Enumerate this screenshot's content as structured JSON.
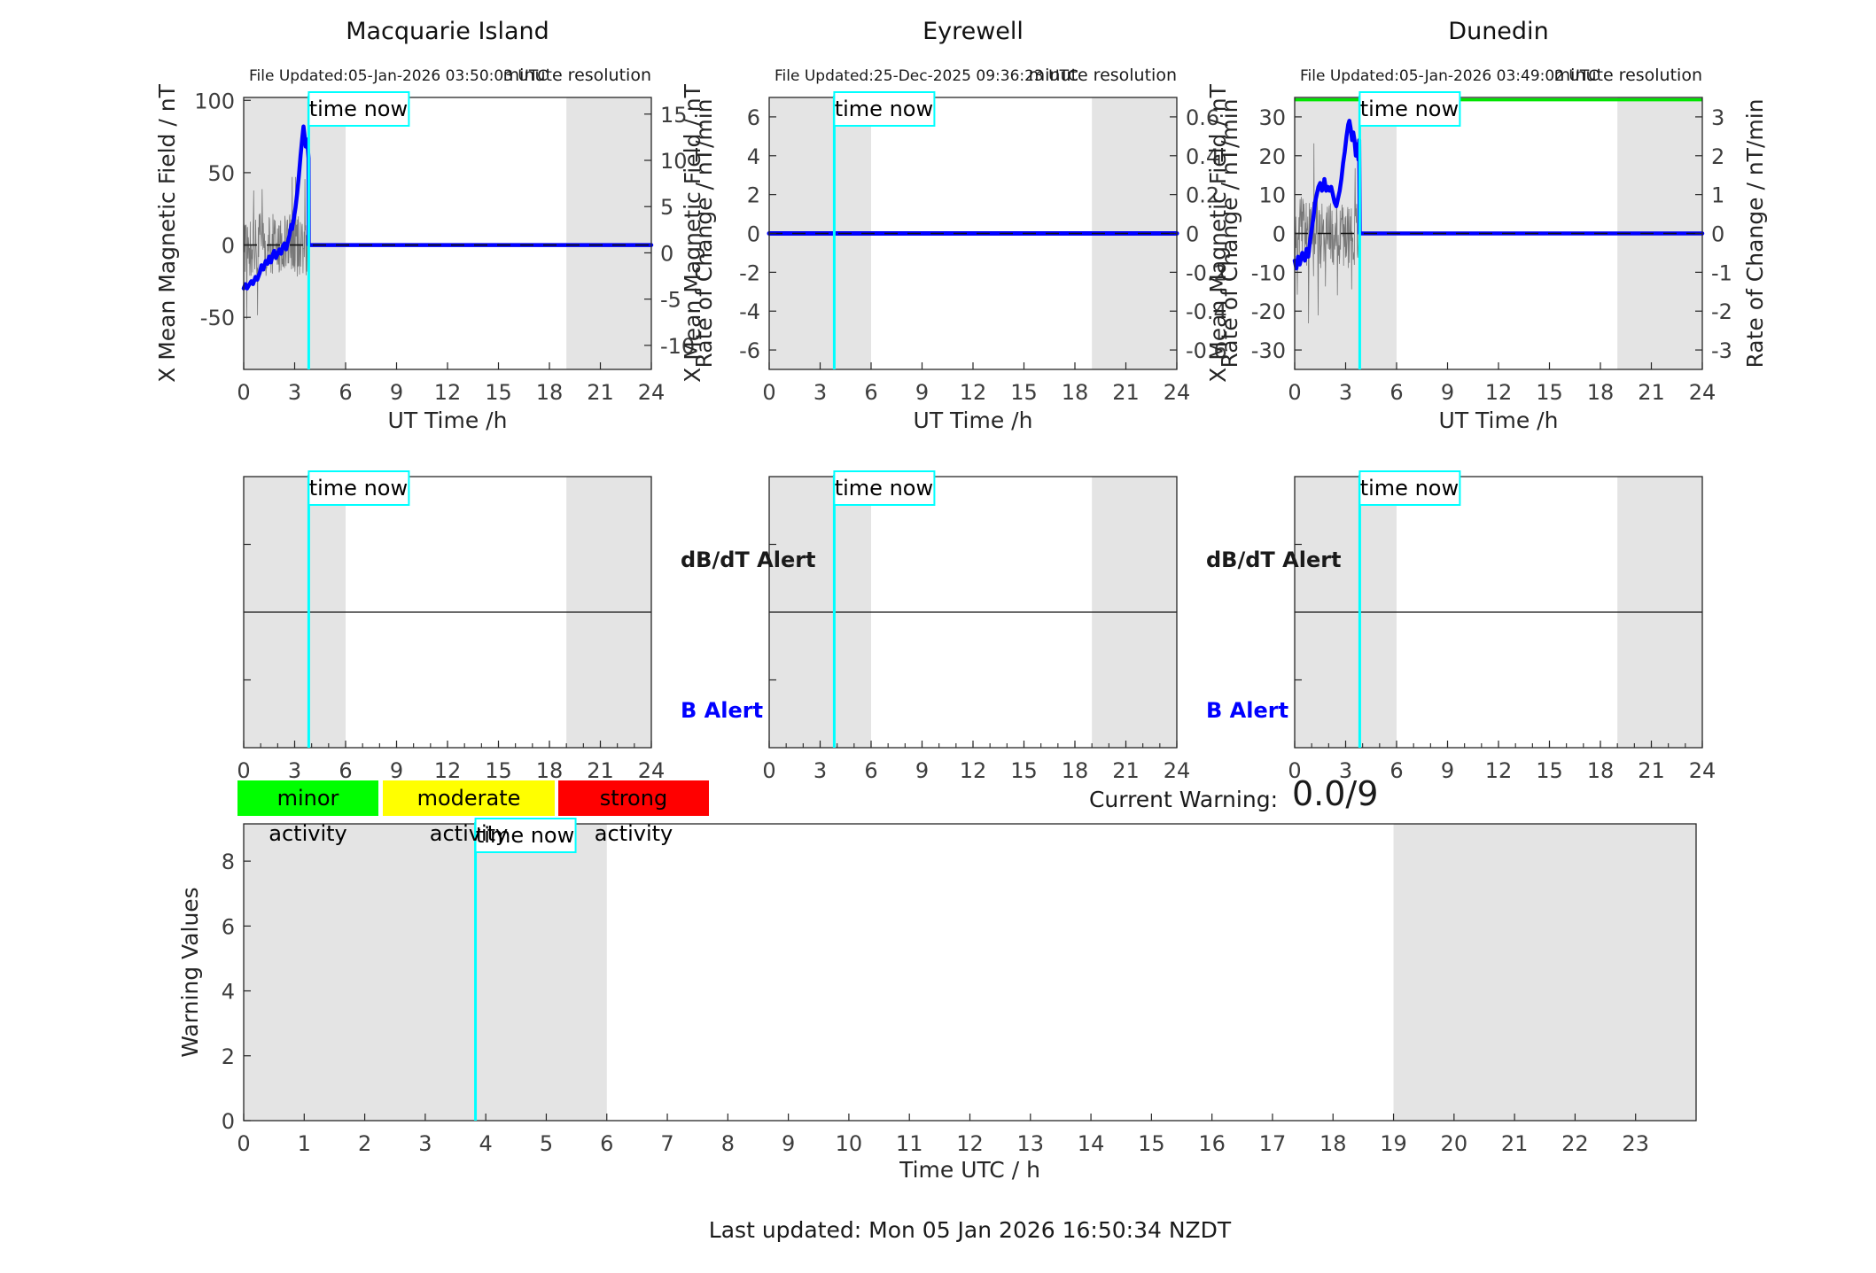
{
  "time_now_label": "time now",
  "stations": [
    {
      "name": "Macquarie Island",
      "file_updated": "File Updated:05-Jan-2026 03:50:03 UTC",
      "resolution_note": "minute resolution"
    },
    {
      "name": "Eyrewell",
      "file_updated": "File Updated:25-Dec-2025 09:36:23 UTC",
      "resolution_note": "minute resolution"
    },
    {
      "name": "Dunedin",
      "file_updated": "File Updated:05-Jan-2026 03:49:02 UTC",
      "resolution_note": "minute resolution"
    }
  ],
  "alert_labels": {
    "db_dt": "dB/dT Alert",
    "b": "B Alert"
  },
  "legend": {
    "items": [
      {
        "label": "minor activity",
        "color": "#00ff00"
      },
      {
        "label": "moderate activity",
        "color": "#ffff00"
      },
      {
        "label": "strong activity",
        "color": "#ff0000"
      }
    ]
  },
  "current_warning": {
    "label": "Current Warning:",
    "value": "0.0/9"
  },
  "footer": "Last updated: Mon 05 Jan 2026 16:50:34 NZDT",
  "colors": {
    "series": "#0000ff",
    "time_now": "#00ffff",
    "band": "#e4e4e4",
    "noise": "#787878",
    "green_line": "#00e400",
    "axis": "#262626",
    "left_axis_text": "#0000ff"
  },
  "chart_data": [
    {
      "id": "macquarie-field",
      "type": "line",
      "station": "Macquarie Island",
      "xlabel": "UT Time /h",
      "xlim": [
        0,
        24
      ],
      "xticks": [
        0,
        3,
        6,
        9,
        12,
        15,
        18,
        21,
        24
      ],
      "left_axis": {
        "label": "X Mean Magnetic Field / nT",
        "ticks": [
          100,
          50,
          0,
          -50
        ],
        "lim": [
          -86,
          102
        ],
        "color": "#0000ff"
      },
      "right_axis": {
        "label": "Rate of Change / nT/min",
        "ticks": [
          15,
          10,
          5,
          0,
          -5,
          -10
        ],
        "lim": [
          -12.6,
          16.8
        ]
      },
      "bands": [
        [
          0,
          6
        ],
        [
          19,
          24
        ]
      ],
      "time_now": 3.83,
      "zero_dashed": true,
      "series": [
        {
          "name": "x-mean-field",
          "color": "#0000ff",
          "width": 4.5,
          "points": [
            [
              0,
              -30
            ],
            [
              0.1,
              -27
            ],
            [
              0.2,
              -30
            ],
            [
              0.3,
              -28
            ],
            [
              0.45,
              -25
            ],
            [
              0.55,
              -27
            ],
            [
              0.7,
              -22
            ],
            [
              0.8,
              -24
            ],
            [
              0.95,
              -19
            ],
            [
              1.05,
              -14
            ],
            [
              1.15,
              -17
            ],
            [
              1.3,
              -11
            ],
            [
              1.4,
              -13
            ],
            [
              1.5,
              -8
            ],
            [
              1.6,
              -12
            ],
            [
              1.7,
              -7
            ],
            [
              1.8,
              -4
            ],
            [
              1.9,
              -9
            ],
            [
              2.0,
              -6
            ],
            [
              2.1,
              -3
            ],
            [
              2.2,
              -6
            ],
            [
              2.3,
              -1
            ],
            [
              2.4,
              1
            ],
            [
              2.5,
              -3
            ],
            [
              2.6,
              2
            ],
            [
              2.7,
              7
            ],
            [
              2.8,
              14
            ],
            [
              2.85,
              11
            ],
            [
              2.95,
              18
            ],
            [
              3.05,
              26
            ],
            [
              3.15,
              36
            ],
            [
              3.25,
              48
            ],
            [
              3.35,
              62
            ],
            [
              3.45,
              74
            ],
            [
              3.52,
              82
            ],
            [
              3.58,
              76
            ],
            [
              3.65,
              68
            ],
            [
              3.7,
              73
            ],
            [
              3.78,
              66
            ],
            [
              3.82,
              60
            ],
            [
              3.83,
              0
            ],
            [
              24,
              0
            ]
          ]
        }
      ],
      "noise": {
        "x_end": 3.83,
        "n": 170,
        "amp": 22,
        "spike_amp": 2.4,
        "spike_p": 0.9,
        "seed": 11,
        "clip": [
          -56,
          47
        ]
      }
    },
    {
      "id": "eyrewell-field",
      "type": "line",
      "station": "Eyrewell",
      "xlabel": "UT Time /h",
      "xlim": [
        0,
        24
      ],
      "xticks": [
        0,
        3,
        6,
        9,
        12,
        15,
        18,
        21,
        24
      ],
      "left_axis": {
        "label": "X Mean Magnetic Field / nT",
        "ticks": [
          6,
          4,
          2,
          0,
          -2,
          -4,
          -6
        ],
        "lim": [
          -7,
          7
        ],
        "color": "#0000ff"
      },
      "right_axis": {
        "label": "Rate of Change / nT/min",
        "ticks": [
          0.6,
          0.4,
          0.2,
          0,
          -0.2,
          -0.4,
          -0.6
        ],
        "lim": [
          -0.7,
          0.7
        ]
      },
      "bands": [
        [
          0,
          6
        ],
        [
          19,
          24
        ]
      ],
      "time_now": 3.83,
      "zero_dashed": true,
      "series": [
        {
          "name": "x-mean-field",
          "color": "#0000ff",
          "width": 5,
          "points": [
            [
              0,
              0
            ],
            [
              24,
              0
            ]
          ]
        }
      ]
    },
    {
      "id": "dunedin-field",
      "type": "line",
      "station": "Dunedin",
      "xlabel": "UT Time /h",
      "xlim": [
        0,
        24
      ],
      "xticks": [
        0,
        3,
        6,
        9,
        12,
        15,
        18,
        21,
        24
      ],
      "left_axis": {
        "label": "X Mean Magnetic Field / nT",
        "ticks": [
          30,
          20,
          10,
          0,
          -10,
          -20,
          -30
        ],
        "lim": [
          -35,
          35
        ],
        "color": "#0000ff"
      },
      "right_axis": {
        "label": "Rate of Change / nT/min",
        "ticks": [
          3,
          2,
          1,
          0,
          -1,
          -2,
          -3
        ],
        "lim": [
          -3.5,
          3.5
        ]
      },
      "bands": [
        [
          0,
          6
        ],
        [
          19,
          24
        ]
      ],
      "time_now": 3.83,
      "zero_dashed": true,
      "green_line": 3.44,
      "series": [
        {
          "name": "x-mean-field",
          "color": "#0000ff",
          "width": 4.5,
          "points": [
            [
              0,
              -7
            ],
            [
              0.1,
              -9
            ],
            [
              0.2,
              -6
            ],
            [
              0.3,
              -8
            ],
            [
              0.45,
              -5
            ],
            [
              0.6,
              -7
            ],
            [
              0.7,
              -4
            ],
            [
              0.8,
              -6
            ],
            [
              0.9,
              -2
            ],
            [
              1.0,
              1
            ],
            [
              1.1,
              4
            ],
            [
              1.2,
              8
            ],
            [
              1.3,
              10
            ],
            [
              1.4,
              12
            ],
            [
              1.5,
              13
            ],
            [
              1.6,
              11
            ],
            [
              1.7,
              12
            ],
            [
              1.75,
              14
            ],
            [
              1.85,
              11
            ],
            [
              1.95,
              12
            ],
            [
              2.05,
              11
            ],
            [
              2.15,
              12
            ],
            [
              2.25,
              10
            ],
            [
              2.35,
              8
            ],
            [
              2.45,
              7
            ],
            [
              2.55,
              9
            ],
            [
              2.65,
              11
            ],
            [
              2.75,
              14
            ],
            [
              2.85,
              18
            ],
            [
              2.95,
              21
            ],
            [
              3.05,
              25
            ],
            [
              3.15,
              28
            ],
            [
              3.22,
              29
            ],
            [
              3.3,
              27
            ],
            [
              3.38,
              24
            ],
            [
              3.45,
              26
            ],
            [
              3.52,
              24
            ],
            [
              3.6,
              20
            ],
            [
              3.68,
              23
            ],
            [
              3.75,
              19
            ],
            [
              3.8,
              24
            ],
            [
              3.83,
              0
            ],
            [
              24,
              0
            ]
          ]
        }
      ],
      "noise": {
        "x_end": 3.83,
        "n": 170,
        "amp": 9,
        "spike_amp": 2.6,
        "spike_p": 0.9,
        "seed": 23,
        "clip": [
          -27,
          29
        ]
      }
    },
    {
      "id": "macquarie-alert",
      "type": "alert",
      "xlim": [
        0,
        24
      ],
      "xticks": [
        0,
        3,
        6,
        9,
        12,
        15,
        18,
        21,
        24
      ],
      "minor_step": 1,
      "bands": [
        [
          0,
          6
        ],
        [
          19,
          24
        ]
      ],
      "time_now": 3.83,
      "mid_line": true,
      "side_ticks": [
        0.25,
        0.75
      ]
    },
    {
      "id": "eyrewell-alert",
      "type": "alert",
      "xlim": [
        0,
        24
      ],
      "xticks": [
        0,
        3,
        6,
        9,
        12,
        15,
        18,
        21,
        24
      ],
      "minor_step": 1,
      "bands": [
        [
          0,
          6
        ],
        [
          19,
          24
        ]
      ],
      "time_now": 3.83,
      "mid_line": true,
      "side_ticks": [
        0.25,
        0.75
      ]
    },
    {
      "id": "dunedin-alert",
      "type": "alert",
      "xlim": [
        0,
        24
      ],
      "xticks": [
        0,
        3,
        6,
        9,
        12,
        15,
        18,
        21,
        24
      ],
      "minor_step": 1,
      "bands": [
        [
          0,
          6
        ],
        [
          19,
          24
        ]
      ],
      "time_now": 3.83,
      "mid_line": true,
      "side_ticks": [
        0.25,
        0.75
      ]
    },
    {
      "id": "warning",
      "type": "warning",
      "xlabel": "Time UTC / h",
      "xlim": [
        0,
        24
      ],
      "xticks": [
        0,
        1,
        2,
        3,
        4,
        5,
        6,
        7,
        8,
        9,
        10,
        11,
        12,
        13,
        14,
        15,
        16,
        17,
        18,
        19,
        20,
        21,
        22,
        23
      ],
      "left_axis": {
        "label": "Warning Values",
        "ticks": [
          0,
          2,
          4,
          6,
          8
        ],
        "lim": [
          0,
          9.15
        ],
        "color": "#262626"
      },
      "bands": [
        [
          0,
          6
        ],
        [
          19,
          24
        ]
      ],
      "time_now": 3.83
    }
  ]
}
